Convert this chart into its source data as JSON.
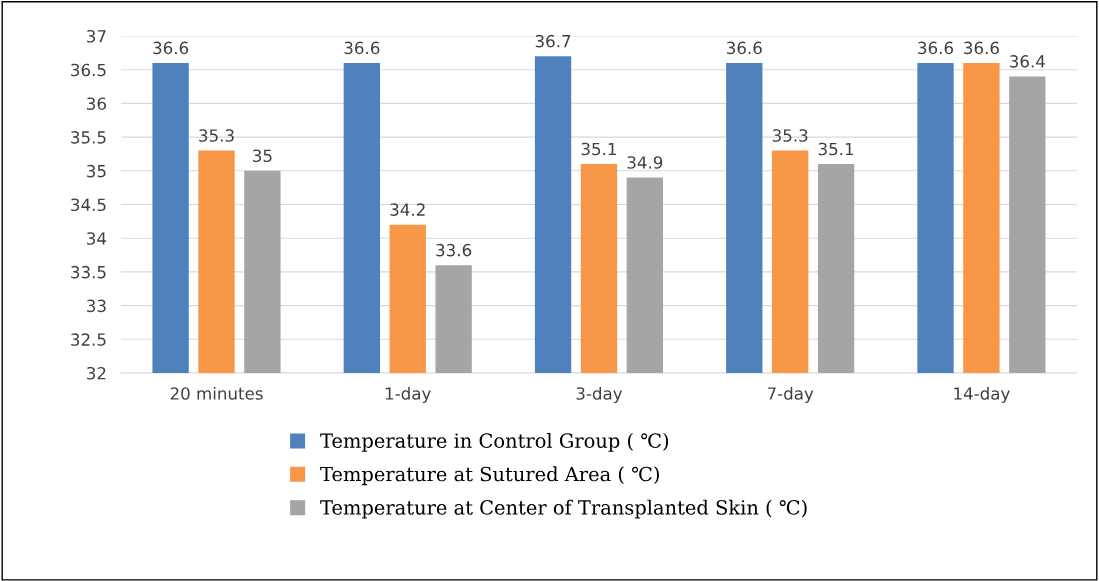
{
  "chart_data": {
    "type": "bar",
    "categories": [
      "20 minutes",
      "1-day",
      "3-day",
      "7-day",
      "14-day"
    ],
    "series": [
      {
        "name": "Temperature in Control Group ( ℃)",
        "color": "#4f81bd",
        "values": [
          36.6,
          36.6,
          36.7,
          36.6,
          36.6
        ]
      },
      {
        "name": "Temperature at Sutured Area ( ℃)",
        "color": "#f79646",
        "values": [
          35.3,
          34.2,
          35.1,
          35.3,
          36.6
        ]
      },
      {
        "name": "Temperature at Center of Transplanted Skin ( ℃)",
        "color": "#a5a5a5",
        "values": [
          35,
          33.6,
          34.9,
          35.1,
          36.4
        ]
      }
    ],
    "ylim": [
      32,
      37
    ],
    "yticks": [
      32,
      {
        "value": 32.5,
        "label": "32.5"
      },
      33,
      {
        "value": 33.5,
        "label": "33.5"
      },
      34,
      {
        "value": 34.5,
        "label": "34.5"
      },
      35,
      {
        "value": 35.5,
        "label": "35.5"
      },
      36,
      {
        "value": 36.5,
        "label": "36.5"
      },
      37
    ],
    "grid": "y",
    "legend": "bottom",
    "data_labels": true
  }
}
